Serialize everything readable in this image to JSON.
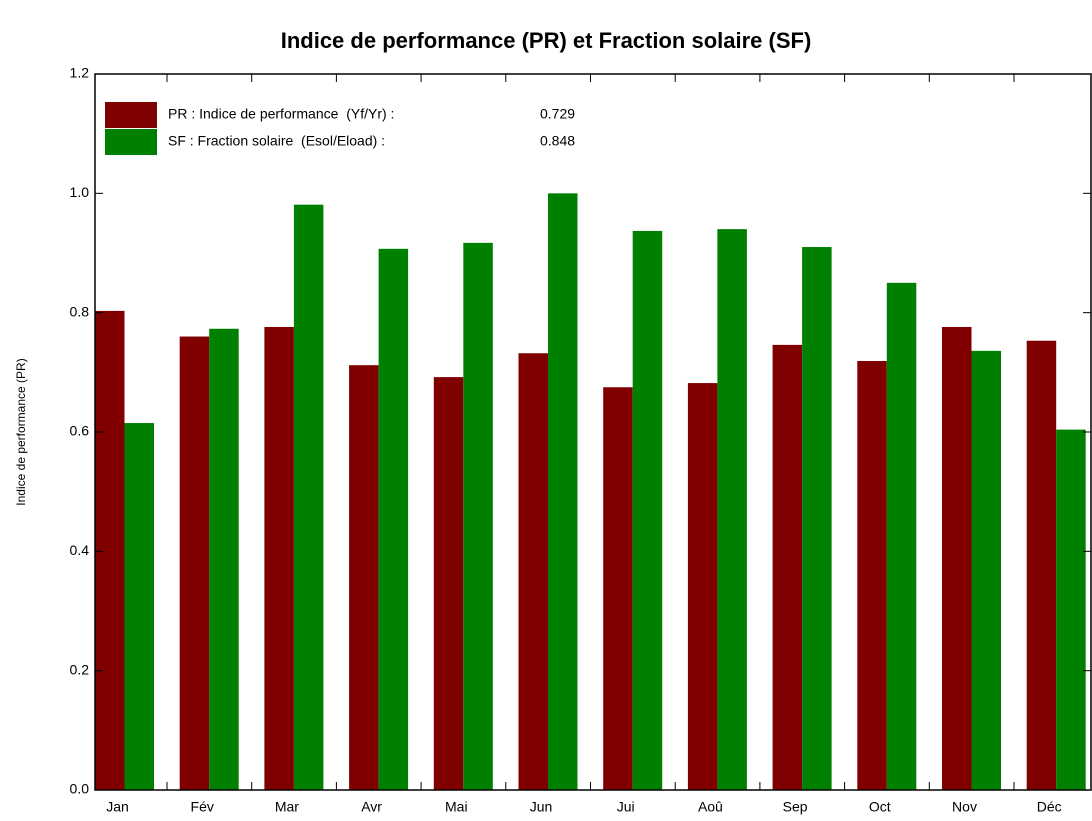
{
  "chart_data": {
    "type": "bar",
    "title": "Indice de performance (PR)  et Fraction solaire (SF)",
    "y_label": "Indice de performance (PR)",
    "categories": [
      "Jan",
      "Fév",
      "Mar",
      "Avr",
      "Mai",
      "Jun",
      "Jui",
      "Aoû",
      "Sep",
      "Oct",
      "Nov",
      "Déc"
    ],
    "series": [
      {
        "name": "PR : Indice de performance  (Yf/Yr) :",
        "color": "#800000",
        "values": [
          0.803,
          0.76,
          0.776,
          0.712,
          0.692,
          0.732,
          0.675,
          0.682,
          0.746,
          0.719,
          0.776,
          0.753
        ]
      },
      {
        "name": "SF : Fraction solaire  (Esol/Eload) :",
        "color": "#008000",
        "values": [
          0.615,
          0.773,
          0.981,
          0.907,
          0.917,
          1.0,
          0.937,
          0.94,
          0.91,
          0.85,
          0.736,
          0.604
        ]
      }
    ],
    "legend_values": [
      0.729,
      0.848
    ],
    "ylim": [
      0,
      1.2
    ],
    "yticks": [
      {
        "value": 0,
        "label": "0.0"
      },
      0.2,
      0.4,
      0.6,
      0.8,
      {
        "value": 1,
        "label": "1.0"
      },
      {
        "value": 1.2,
        "label": "1.2"
      }
    ],
    "legend": "upper left"
  }
}
